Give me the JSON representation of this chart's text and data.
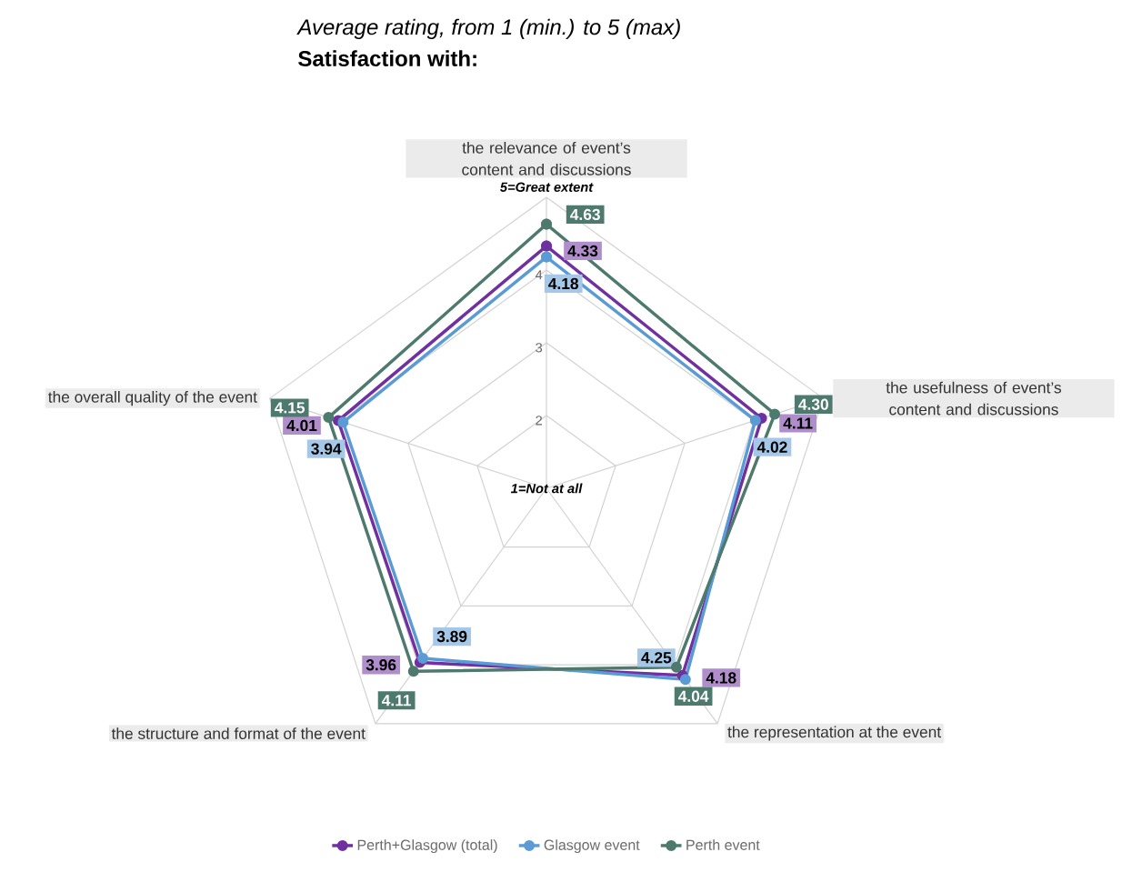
{
  "chart_data": {
    "type": "radar",
    "title": "Average rating, from  1 (min.) to 5 (max)",
    "subtitle": "Satisfaction with:",
    "categories": [
      "the relevance of event’s content and discussions",
      "the usefulness of event’s content and discussions",
      "the representation at the event",
      "the structure and format of the event",
      "the overall quality of the event"
    ],
    "series": [
      {
        "name": "Perth+Glasgow (total)",
        "color": "#7030a0",
        "values": [
          4.33,
          4.11,
          4.18,
          3.96,
          4.01
        ],
        "value_labels": [
          "4.33",
          "4.11",
          "4.18",
          "3.96",
          "4.01"
        ]
      },
      {
        "name": "Glasgow event",
        "color": "#5b9bd5",
        "values": [
          4.18,
          4.02,
          4.25,
          3.89,
          3.94
        ],
        "value_labels": [
          "4.18",
          "4.02",
          "4.25",
          "3.89",
          "3.94"
        ]
      },
      {
        "name": "Perth event",
        "color": "#4e7a6e",
        "values": [
          4.63,
          4.3,
          4.04,
          4.11,
          4.15
        ],
        "value_labels": [
          "4.63",
          "4.30",
          "4.04",
          "4.11",
          "4.15"
        ]
      }
    ],
    "ylim": [
      1,
      5
    ],
    "yticks": [
      {
        "value": 1,
        "label": "1=Not at all"
      },
      2,
      3,
      4,
      {
        "value": 5,
        "label": "5=Great extent"
      }
    ],
    "grid": true,
    "legend": "bottom",
    "marker": "circle",
    "line_style": "solid"
  }
}
